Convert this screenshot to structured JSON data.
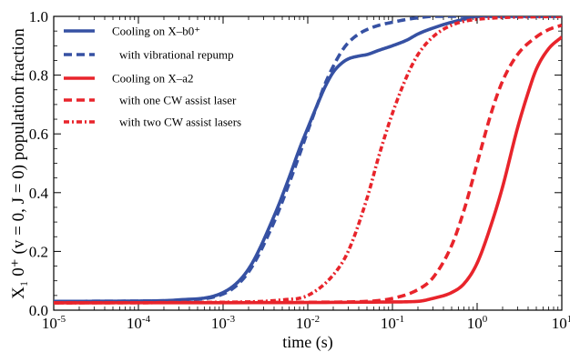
{
  "chart_data": {
    "type": "line",
    "xlabel": "time (s)",
    "ylabel": "X₁ 0⁺ (v = 0, J = 0) population fraction",
    "xscale": "log",
    "xlim": [
      1e-05,
      10
    ],
    "ylim": [
      0.0,
      1.0
    ],
    "x_ticks": [
      {
        "value": 1e-05,
        "base": "10",
        "exp": "-5"
      },
      {
        "value": 0.0001,
        "base": "10",
        "exp": "-4"
      },
      {
        "value": 0.001,
        "base": "10",
        "exp": "-3"
      },
      {
        "value": 0.01,
        "base": "10",
        "exp": "-2"
      },
      {
        "value": 0.1,
        "base": "10",
        "exp": "-1"
      },
      {
        "value": 1,
        "base": "10",
        "exp": "0"
      },
      {
        "value": 10,
        "base": "10",
        "exp": "1"
      }
    ],
    "y_ticks": [
      {
        "value": 0.0,
        "label": "0.0"
      },
      {
        "value": 0.2,
        "label": "0.2"
      },
      {
        "value": 0.4,
        "label": "0.4"
      },
      {
        "value": 0.6,
        "label": "0.6"
      },
      {
        "value": 0.8,
        "label": "0.8"
      },
      {
        "value": 1.0,
        "label": "1.0"
      }
    ],
    "grid": false,
    "legend_position": "top-left",
    "series": [
      {
        "name": "Cooling on X–b0⁺",
        "color": "#3651a3",
        "style": "solid",
        "x": [
          1e-05,
          0.0001,
          0.0003,
          0.001,
          0.002,
          0.004,
          0.006,
          0.008,
          0.01,
          0.013,
          0.016,
          0.02,
          0.025,
          0.03,
          0.04,
          0.05,
          0.07,
          0.1,
          0.15,
          0.2,
          0.3,
          0.5,
          0.7,
          1,
          2,
          10
        ],
        "y": [
          0.03,
          0.031,
          0.035,
          0.06,
          0.14,
          0.32,
          0.45,
          0.55,
          0.62,
          0.7,
          0.76,
          0.81,
          0.84,
          0.855,
          0.865,
          0.87,
          0.885,
          0.9,
          0.92,
          0.94,
          0.96,
          0.98,
          0.99,
          1.0,
          1.0,
          1.0
        ]
      },
      {
        "name": "with vibrational repump",
        "color": "#3651a3",
        "style": "dashed",
        "x": [
          1e-05,
          0.0001,
          0.0003,
          0.001,
          0.002,
          0.004,
          0.006,
          0.008,
          0.01,
          0.013,
          0.016,
          0.02,
          0.025,
          0.03,
          0.04,
          0.05,
          0.07,
          0.1,
          0.15,
          0.2,
          0.3,
          0.5,
          1,
          10
        ],
        "y": [
          0.03,
          0.031,
          0.034,
          0.055,
          0.13,
          0.3,
          0.43,
          0.53,
          0.61,
          0.7,
          0.77,
          0.83,
          0.88,
          0.91,
          0.94,
          0.955,
          0.97,
          0.98,
          0.99,
          0.995,
          1.0,
          1.0,
          1.0,
          1.0
        ]
      },
      {
        "name": "Cooling on X–a2",
        "color": "#e8242b",
        "style": "solid",
        "x": [
          1e-05,
          0.01,
          0.1,
          0.2,
          0.3,
          0.5,
          0.7,
          1,
          1.5,
          2,
          3,
          4,
          5,
          7,
          10
        ],
        "y": [
          0.025,
          0.026,
          0.028,
          0.03,
          0.04,
          0.06,
          0.09,
          0.16,
          0.3,
          0.42,
          0.62,
          0.74,
          0.82,
          0.89,
          0.93
        ]
      },
      {
        "name": "with one CW assist laser",
        "color": "#e8242b",
        "style": "dashed",
        "x": [
          1e-05,
          0.01,
          0.05,
          0.1,
          0.2,
          0.3,
          0.5,
          0.7,
          1,
          1.5,
          2,
          3,
          5,
          7,
          10
        ],
        "y": [
          0.025,
          0.027,
          0.03,
          0.04,
          0.07,
          0.11,
          0.22,
          0.34,
          0.5,
          0.68,
          0.78,
          0.87,
          0.93,
          0.955,
          0.97
        ]
      },
      {
        "name": "with two CW assist lasers",
        "color": "#e8242b",
        "style": "dashdot",
        "x": [
          1e-05,
          0.001,
          0.005,
          0.01,
          0.02,
          0.03,
          0.05,
          0.07,
          0.1,
          0.15,
          0.2,
          0.3,
          0.5,
          1,
          10
        ],
        "y": [
          0.025,
          0.027,
          0.035,
          0.05,
          0.12,
          0.2,
          0.38,
          0.53,
          0.67,
          0.8,
          0.87,
          0.93,
          0.97,
          0.99,
          1.0
        ]
      }
    ]
  }
}
